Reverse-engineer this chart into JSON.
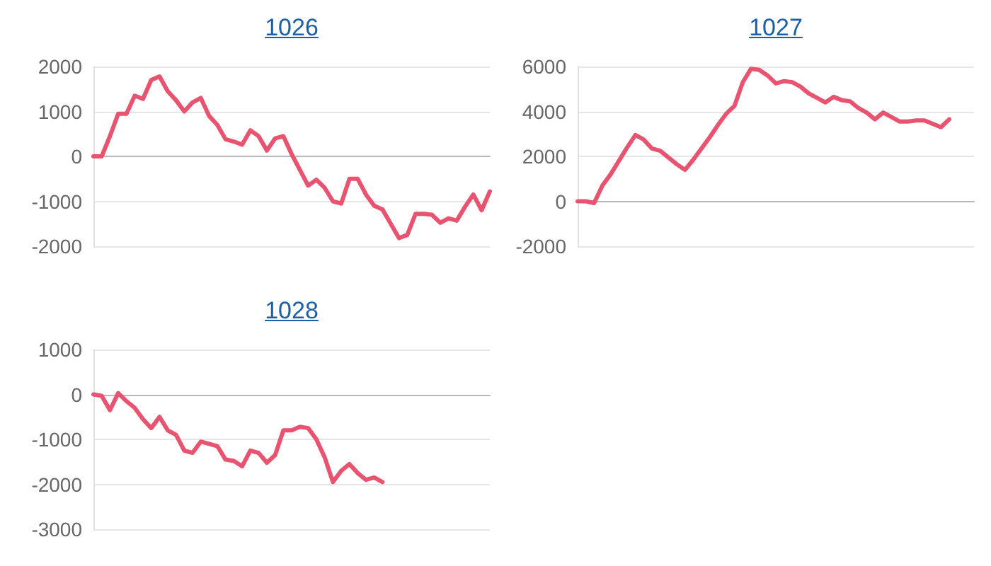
{
  "chart_data": [
    {
      "type": "line",
      "title": "1026",
      "categories": [
        null,
        null,
        null,
        null,
        null,
        null,
        null,
        null,
        null,
        null,
        null,
        null,
        null,
        null,
        null,
        null,
        null,
        null,
        null,
        null,
        null,
        null,
        null,
        null,
        null,
        null,
        null,
        null,
        null,
        null,
        null,
        null,
        null,
        null,
        null,
        null,
        null,
        null,
        null,
        null,
        null,
        null,
        null,
        null,
        null,
        null,
        null,
        null,
        null
      ],
      "values": [
        0,
        0,
        450,
        950,
        950,
        1350,
        1280,
        1700,
        1780,
        1450,
        1250,
        1000,
        1200,
        1300,
        900,
        700,
        380,
        330,
        260,
        580,
        450,
        130,
        400,
        450,
        50,
        -300,
        -650,
        -520,
        -700,
        -1000,
        -1050,
        -500,
        -500,
        -850,
        -1100,
        -1180,
        -1500,
        -1820,
        -1750,
        -1280,
        -1280,
        -1300,
        -1480,
        -1380,
        -1430,
        -1120,
        -850,
        -1200,
        -780
      ],
      "color": "#e8546f",
      "ylim": [
        -2000,
        2000
      ],
      "yticks": [
        -2000,
        -1000,
        0,
        1000,
        2000
      ],
      "grid": "y",
      "tick_labels": "y",
      "line_style": "solid"
    },
    {
      "type": "line",
      "title": "1027",
      "categories": [
        null,
        null,
        null,
        null,
        null,
        null,
        null,
        null,
        null,
        null,
        null,
        null,
        null,
        null,
        null,
        null,
        null,
        null,
        null,
        null,
        null,
        null,
        null,
        null,
        null,
        null,
        null,
        null,
        null,
        null,
        null,
        null,
        null,
        null,
        null,
        null,
        null,
        null,
        null,
        null,
        null,
        null,
        null,
        null,
        null,
        null,
        null,
        null,
        null
      ],
      "values": [
        0,
        0,
        -80,
        700,
        1200,
        1800,
        2400,
        2950,
        2750,
        2350,
        2250,
        1950,
        1650,
        1400,
        1850,
        2350,
        2850,
        3400,
        3900,
        4250,
        5300,
        5900,
        5850,
        5600,
        5250,
        5350,
        5300,
        5100,
        4800,
        4600,
        4400,
        4650,
        4500,
        4450,
        4150,
        3950,
        3650,
        3950,
        3750,
        3550,
        3550,
        3600,
        3600,
        3450,
        3300,
        3650,
        null,
        null,
        null
      ],
      "color": "#e8546f",
      "ylim": [
        -2000,
        6000
      ],
      "yticks": [
        -2000,
        0,
        2000,
        4000,
        6000
      ],
      "grid": "y",
      "tick_labels": "y",
      "line_style": "solid"
    },
    {
      "type": "line",
      "title": "1028",
      "categories": [
        null,
        null,
        null,
        null,
        null,
        null,
        null,
        null,
        null,
        null,
        null,
        null,
        null,
        null,
        null,
        null,
        null,
        null,
        null,
        null,
        null,
        null,
        null,
        null,
        null,
        null,
        null,
        null,
        null,
        null,
        null,
        null,
        null,
        null,
        null,
        null,
        null,
        null,
        null,
        null,
        null,
        null,
        null,
        null,
        null,
        null,
        null,
        null,
        null
      ],
      "values": [
        0,
        -30,
        -350,
        30,
        -150,
        -300,
        -550,
        -750,
        -500,
        -800,
        -900,
        -1250,
        -1300,
        -1050,
        -1100,
        -1150,
        -1450,
        -1480,
        -1600,
        -1250,
        -1300,
        -1520,
        -1350,
        -800,
        -800,
        -720,
        -750,
        -1000,
        -1400,
        -1950,
        -1700,
        -1550,
        -1750,
        -1900,
        -1850,
        -1950,
        null,
        null,
        null,
        null,
        null,
        null,
        null,
        null,
        null,
        null,
        null,
        null,
        null
      ],
      "color": "#e8546f",
      "ylim": [
        -3000,
        1000
      ],
      "yticks": [
        -3000,
        -2000,
        -1000,
        0,
        1000
      ],
      "grid": "y",
      "tick_labels": "y",
      "line_style": "solid"
    }
  ]
}
